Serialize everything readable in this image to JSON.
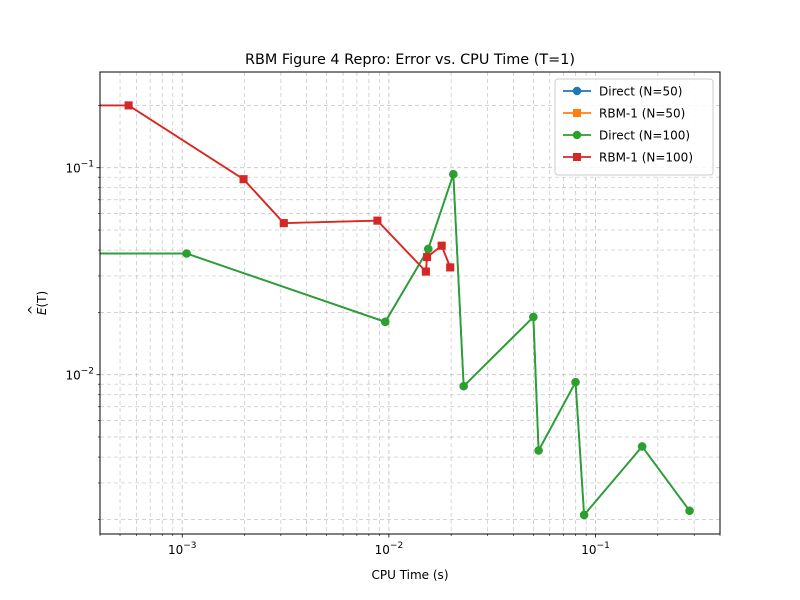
{
  "chart_data": {
    "type": "line",
    "title": "RBM Figure 4 Repro: Error vs. CPU Time (T=1)",
    "xlabel": "CPU Time (s)",
    "ylabel_base": "E",
    "ylabel_arg": "(T)",
    "xscale": "log",
    "yscale": "log",
    "xlim": [
      0.0004,
      0.4
    ],
    "ylim": [
      0.0017,
      0.29
    ],
    "grid": true,
    "legend_position": "top-right",
    "x_tick_labels": [
      {
        "value": 0.001,
        "base": "10",
        "exp": "−3"
      },
      {
        "value": 0.01,
        "base": "10",
        "exp": "−2"
      },
      {
        "value": 0.1,
        "base": "10",
        "exp": "−1"
      }
    ],
    "y_tick_labels": [
      {
        "value": 0.01,
        "base": "10",
        "exp": "−2"
      },
      {
        "value": 0.1,
        "base": "10",
        "exp": "−1"
      }
    ],
    "series": [
      {
        "name": "Direct (N=50)",
        "color": "#1f77b4",
        "marker": "circle",
        "x": [
          0.00105,
          0.0096,
          0.0155,
          0.0205,
          0.023,
          0.05,
          0.053,
          0.08,
          0.088,
          0.168,
          0.285
        ],
        "y": [
          0.0385,
          0.018,
          0.0405,
          0.093,
          0.0088,
          0.019,
          0.0043,
          0.0092,
          0.0021,
          0.0045,
          0.0022
        ]
      },
      {
        "name": "RBM-1 (N=50)",
        "color": "#ff7f0e",
        "marker": "square",
        "x": [
          0.00055,
          0.00198,
          0.0031,
          0.0088,
          0.0151,
          0.0153,
          0.018,
          0.0198
        ],
        "y": [
          0.2,
          0.088,
          0.054,
          0.0555,
          0.0315,
          0.037,
          0.042,
          0.033
        ]
      },
      {
        "name": "Direct (N=100)",
        "color": "#2ca02c",
        "marker": "circle",
        "x": [
          0.00105,
          0.0096,
          0.0155,
          0.0205,
          0.023,
          0.05,
          0.053,
          0.08,
          0.088,
          0.168,
          0.285
        ],
        "y": [
          0.0385,
          0.018,
          0.0405,
          0.093,
          0.0088,
          0.019,
          0.0043,
          0.0092,
          0.0021,
          0.0045,
          0.0022
        ]
      },
      {
        "name": "RBM-1 (N=100)",
        "color": "#d62728",
        "marker": "square",
        "x": [
          0.00055,
          0.00198,
          0.0031,
          0.0088,
          0.0151,
          0.0153,
          0.018,
          0.0198
        ],
        "y": [
          0.2,
          0.088,
          0.054,
          0.0555,
          0.0315,
          0.037,
          0.042,
          0.033
        ]
      }
    ]
  }
}
